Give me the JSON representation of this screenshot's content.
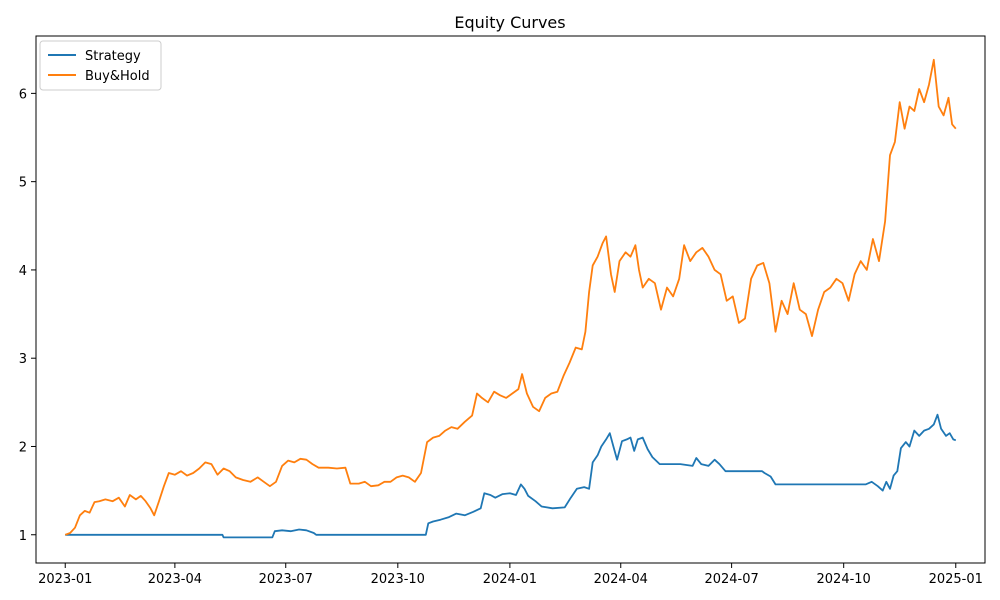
{
  "chart_data": {
    "type": "line",
    "title": "Equity Curves",
    "xlabel": "",
    "ylabel": "",
    "x_range": [
      "2022-12-08",
      "2025-01-25"
    ],
    "ylim": [
      0.68,
      6.65
    ],
    "x_ticks": [
      {
        "date": "2023-01-01",
        "label": "2023-01"
      },
      {
        "date": "2023-04-01",
        "label": "2023-04"
      },
      {
        "date": "2023-07-01",
        "label": "2023-07"
      },
      {
        "date": "2023-10-01",
        "label": "2023-10"
      },
      {
        "date": "2024-01-01",
        "label": "2024-01"
      },
      {
        "date": "2024-04-01",
        "label": "2024-04"
      },
      {
        "date": "2024-07-01",
        "label": "2024-07"
      },
      {
        "date": "2024-10-01",
        "label": "2024-10"
      },
      {
        "date": "2025-01-01",
        "label": "2025-01"
      }
    ],
    "y_ticks": [
      1,
      2,
      3,
      4,
      5,
      6
    ],
    "grid": false,
    "legend_position": "top-left",
    "series": [
      {
        "name": "Strategy",
        "color": "#1f77b4",
        "points": [
          [
            "2023-01-01",
            1.0
          ],
          [
            "2023-02-15",
            1.0
          ],
          [
            "2023-04-01",
            1.0
          ],
          [
            "2023-05-10",
            1.0
          ],
          [
            "2023-05-11",
            0.97
          ],
          [
            "2023-06-20",
            0.97
          ],
          [
            "2023-06-22",
            1.04
          ],
          [
            "2023-06-28",
            1.05
          ],
          [
            "2023-07-05",
            1.04
          ],
          [
            "2023-07-12",
            1.06
          ],
          [
            "2023-07-18",
            1.05
          ],
          [
            "2023-07-24",
            1.02
          ],
          [
            "2023-07-26",
            1.0
          ],
          [
            "2023-09-01",
            1.0
          ],
          [
            "2023-10-24",
            1.0
          ],
          [
            "2023-10-26",
            1.13
          ],
          [
            "2023-10-30",
            1.15
          ],
          [
            "2023-11-05",
            1.17
          ],
          [
            "2023-11-12",
            1.2
          ],
          [
            "2023-11-18",
            1.24
          ],
          [
            "2023-11-25",
            1.22
          ],
          [
            "2023-12-02",
            1.26
          ],
          [
            "2023-12-08",
            1.3
          ],
          [
            "2023-12-11",
            1.47
          ],
          [
            "2023-12-16",
            1.45
          ],
          [
            "2023-12-20",
            1.42
          ],
          [
            "2023-12-26",
            1.46
          ],
          [
            "2024-01-01",
            1.47
          ],
          [
            "2024-01-06",
            1.45
          ],
          [
            "2024-01-10",
            1.57
          ],
          [
            "2024-01-13",
            1.52
          ],
          [
            "2024-01-16",
            1.44
          ],
          [
            "2024-01-22",
            1.38
          ],
          [
            "2024-01-27",
            1.32
          ],
          [
            "2024-02-05",
            1.3
          ],
          [
            "2024-02-15",
            1.31
          ],
          [
            "2024-02-20",
            1.42
          ],
          [
            "2024-02-25",
            1.52
          ],
          [
            "2024-03-02",
            1.54
          ],
          [
            "2024-03-06",
            1.52
          ],
          [
            "2024-03-09",
            1.82
          ],
          [
            "2024-03-13",
            1.9
          ],
          [
            "2024-03-16",
            2.0
          ],
          [
            "2024-03-20",
            2.08
          ],
          [
            "2024-03-23",
            2.15
          ],
          [
            "2024-03-26",
            2.0
          ],
          [
            "2024-03-29",
            1.85
          ],
          [
            "2024-04-02",
            2.06
          ],
          [
            "2024-04-06",
            2.08
          ],
          [
            "2024-04-09",
            2.1
          ],
          [
            "2024-04-12",
            1.95
          ],
          [
            "2024-04-15",
            2.08
          ],
          [
            "2024-04-19",
            2.1
          ],
          [
            "2024-04-23",
            1.97
          ],
          [
            "2024-04-27",
            1.88
          ],
          [
            "2024-05-03",
            1.8
          ],
          [
            "2024-05-20",
            1.8
          ],
          [
            "2024-05-30",
            1.78
          ],
          [
            "2024-06-02",
            1.87
          ],
          [
            "2024-06-06",
            1.8
          ],
          [
            "2024-06-12",
            1.78
          ],
          [
            "2024-06-17",
            1.85
          ],
          [
            "2024-06-21",
            1.8
          ],
          [
            "2024-06-26",
            1.72
          ],
          [
            "2024-07-26",
            1.72
          ],
          [
            "2024-07-28",
            1.7
          ],
          [
            "2024-08-02",
            1.66
          ],
          [
            "2024-08-06",
            1.57
          ],
          [
            "2024-09-15",
            1.57
          ],
          [
            "2024-10-19",
            1.57
          ],
          [
            "2024-10-24",
            1.6
          ],
          [
            "2024-10-29",
            1.55
          ],
          [
            "2024-11-02",
            1.5
          ],
          [
            "2024-11-05",
            1.6
          ],
          [
            "2024-11-08",
            1.52
          ],
          [
            "2024-11-11",
            1.67
          ],
          [
            "2024-11-14",
            1.72
          ],
          [
            "2024-11-17",
            1.98
          ],
          [
            "2024-11-21",
            2.05
          ],
          [
            "2024-11-24",
            2.0
          ],
          [
            "2024-11-28",
            2.18
          ],
          [
            "2024-12-02",
            2.12
          ],
          [
            "2024-12-06",
            2.18
          ],
          [
            "2024-12-10",
            2.2
          ],
          [
            "2024-12-14",
            2.25
          ],
          [
            "2024-12-17",
            2.36
          ],
          [
            "2024-12-20",
            2.2
          ],
          [
            "2024-12-24",
            2.12
          ],
          [
            "2024-12-27",
            2.15
          ],
          [
            "2024-12-30",
            2.08
          ],
          [
            "2025-01-01",
            2.07
          ]
        ]
      },
      {
        "name": "Buy&Hold",
        "color": "#ff7f0e",
        "points": [
          [
            "2023-01-01",
            1.0
          ],
          [
            "2023-01-05",
            1.02
          ],
          [
            "2023-01-09",
            1.08
          ],
          [
            "2023-01-13",
            1.22
          ],
          [
            "2023-01-17",
            1.27
          ],
          [
            "2023-01-21",
            1.25
          ],
          [
            "2023-01-25",
            1.37
          ],
          [
            "2023-01-29",
            1.38
          ],
          [
            "2023-02-03",
            1.4
          ],
          [
            "2023-02-09",
            1.38
          ],
          [
            "2023-02-14",
            1.42
          ],
          [
            "2023-02-19",
            1.32
          ],
          [
            "2023-02-23",
            1.45
          ],
          [
            "2023-02-28",
            1.4
          ],
          [
            "2023-03-04",
            1.44
          ],
          [
            "2023-03-08",
            1.38
          ],
          [
            "2023-03-12",
            1.3
          ],
          [
            "2023-03-15",
            1.22
          ],
          [
            "2023-03-19",
            1.38
          ],
          [
            "2023-03-23",
            1.55
          ],
          [
            "2023-03-27",
            1.7
          ],
          [
            "2023-04-01",
            1.68
          ],
          [
            "2023-04-06",
            1.72
          ],
          [
            "2023-04-11",
            1.67
          ],
          [
            "2023-04-16",
            1.7
          ],
          [
            "2023-04-21",
            1.75
          ],
          [
            "2023-04-26",
            1.82
          ],
          [
            "2023-05-01",
            1.8
          ],
          [
            "2023-05-06",
            1.68
          ],
          [
            "2023-05-11",
            1.75
          ],
          [
            "2023-05-16",
            1.72
          ],
          [
            "2023-05-21",
            1.65
          ],
          [
            "2023-05-27",
            1.62
          ],
          [
            "2023-06-02",
            1.6
          ],
          [
            "2023-06-08",
            1.65
          ],
          [
            "2023-06-13",
            1.6
          ],
          [
            "2023-06-18",
            1.55
          ],
          [
            "2023-06-23",
            1.6
          ],
          [
            "2023-06-28",
            1.78
          ],
          [
            "2023-07-03",
            1.84
          ],
          [
            "2023-07-08",
            1.82
          ],
          [
            "2023-07-13",
            1.86
          ],
          [
            "2023-07-18",
            1.85
          ],
          [
            "2023-07-23",
            1.8
          ],
          [
            "2023-07-28",
            1.76
          ],
          [
            "2023-08-05",
            1.76
          ],
          [
            "2023-08-12",
            1.75
          ],
          [
            "2023-08-19",
            1.76
          ],
          [
            "2023-08-23",
            1.58
          ],
          [
            "2023-08-30",
            1.58
          ],
          [
            "2023-09-04",
            1.6
          ],
          [
            "2023-09-09",
            1.55
          ],
          [
            "2023-09-15",
            1.56
          ],
          [
            "2023-09-20",
            1.6
          ],
          [
            "2023-09-25",
            1.6
          ],
          [
            "2023-09-30",
            1.65
          ],
          [
            "2023-10-05",
            1.67
          ],
          [
            "2023-10-10",
            1.65
          ],
          [
            "2023-10-15",
            1.6
          ],
          [
            "2023-10-20",
            1.7
          ],
          [
            "2023-10-25",
            2.05
          ],
          [
            "2023-10-30",
            2.1
          ],
          [
            "2023-11-04",
            2.12
          ],
          [
            "2023-11-09",
            2.18
          ],
          [
            "2023-11-14",
            2.22
          ],
          [
            "2023-11-19",
            2.2
          ],
          [
            "2023-11-25",
            2.28
          ],
          [
            "2023-12-01",
            2.35
          ],
          [
            "2023-12-05",
            2.6
          ],
          [
            "2023-12-09",
            2.55
          ],
          [
            "2023-12-14",
            2.5
          ],
          [
            "2023-12-19",
            2.62
          ],
          [
            "2023-12-24",
            2.58
          ],
          [
            "2023-12-29",
            2.55
          ],
          [
            "2024-01-03",
            2.6
          ],
          [
            "2024-01-08",
            2.65
          ],
          [
            "2024-01-11",
            2.82
          ],
          [
            "2024-01-15",
            2.6
          ],
          [
            "2024-01-20",
            2.45
          ],
          [
            "2024-01-25",
            2.4
          ],
          [
            "2024-01-30",
            2.55
          ],
          [
            "2024-02-04",
            2.6
          ],
          [
            "2024-02-09",
            2.62
          ],
          [
            "2024-02-14",
            2.8
          ],
          [
            "2024-02-19",
            2.95
          ],
          [
            "2024-02-24",
            3.12
          ],
          [
            "2024-02-29",
            3.1
          ],
          [
            "2024-03-03",
            3.3
          ],
          [
            "2024-03-06",
            3.75
          ],
          [
            "2024-03-09",
            4.05
          ],
          [
            "2024-03-13",
            4.15
          ],
          [
            "2024-03-17",
            4.3
          ],
          [
            "2024-03-20",
            4.38
          ],
          [
            "2024-03-24",
            3.95
          ],
          [
            "2024-03-27",
            3.75
          ],
          [
            "2024-03-31",
            4.1
          ],
          [
            "2024-04-05",
            4.2
          ],
          [
            "2024-04-09",
            4.15
          ],
          [
            "2024-04-13",
            4.28
          ],
          [
            "2024-04-16",
            4.0
          ],
          [
            "2024-04-19",
            3.8
          ],
          [
            "2024-04-24",
            3.9
          ],
          [
            "2024-04-29",
            3.85
          ],
          [
            "2024-05-04",
            3.55
          ],
          [
            "2024-05-09",
            3.8
          ],
          [
            "2024-05-14",
            3.7
          ],
          [
            "2024-05-19",
            3.9
          ],
          [
            "2024-05-23",
            4.28
          ],
          [
            "2024-05-28",
            4.1
          ],
          [
            "2024-06-02",
            4.2
          ],
          [
            "2024-06-07",
            4.25
          ],
          [
            "2024-06-12",
            4.15
          ],
          [
            "2024-06-17",
            4.0
          ],
          [
            "2024-06-22",
            3.95
          ],
          [
            "2024-06-27",
            3.65
          ],
          [
            "2024-07-02",
            3.7
          ],
          [
            "2024-07-07",
            3.4
          ],
          [
            "2024-07-12",
            3.45
          ],
          [
            "2024-07-17",
            3.9
          ],
          [
            "2024-07-22",
            4.05
          ],
          [
            "2024-07-27",
            4.08
          ],
          [
            "2024-08-01",
            3.85
          ],
          [
            "2024-08-06",
            3.3
          ],
          [
            "2024-08-11",
            3.65
          ],
          [
            "2024-08-16",
            3.5
          ],
          [
            "2024-08-21",
            3.85
          ],
          [
            "2024-08-26",
            3.55
          ],
          [
            "2024-08-31",
            3.5
          ],
          [
            "2024-09-05",
            3.25
          ],
          [
            "2024-09-10",
            3.55
          ],
          [
            "2024-09-15",
            3.75
          ],
          [
            "2024-09-20",
            3.8
          ],
          [
            "2024-09-25",
            3.9
          ],
          [
            "2024-09-30",
            3.85
          ],
          [
            "2024-10-05",
            3.65
          ],
          [
            "2024-10-10",
            3.95
          ],
          [
            "2024-10-15",
            4.1
          ],
          [
            "2024-10-20",
            4.0
          ],
          [
            "2024-10-25",
            4.35
          ],
          [
            "2024-10-30",
            4.1
          ],
          [
            "2024-11-04",
            4.55
          ],
          [
            "2024-11-08",
            5.3
          ],
          [
            "2024-11-12",
            5.45
          ],
          [
            "2024-11-16",
            5.9
          ],
          [
            "2024-11-20",
            5.6
          ],
          [
            "2024-11-24",
            5.85
          ],
          [
            "2024-11-28",
            5.8
          ],
          [
            "2024-12-02",
            6.05
          ],
          [
            "2024-12-06",
            5.9
          ],
          [
            "2024-12-10",
            6.1
          ],
          [
            "2024-12-14",
            6.38
          ],
          [
            "2024-12-18",
            5.85
          ],
          [
            "2024-12-22",
            5.75
          ],
          [
            "2024-12-26",
            5.95
          ],
          [
            "2024-12-29",
            5.65
          ],
          [
            "2025-01-01",
            5.6
          ]
        ]
      }
    ]
  }
}
